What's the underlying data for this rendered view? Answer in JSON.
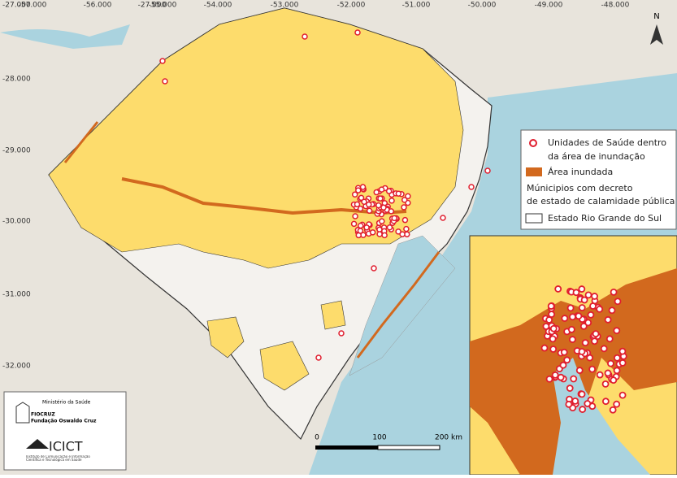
{
  "map": {
    "lon_labels": [
      "-57.000",
      "-56.000",
      "-27.000",
      "-55.000",
      "-54.000",
      "-53.000",
      "-52.000",
      "-51.000",
      "-50.000",
      "-49.000",
      "-48.000"
    ],
    "lat_labels": [
      "-27.000",
      "-28.000",
      "-29.000",
      "-30.000",
      "-31.000",
      "-32.000"
    ],
    "north": "N",
    "legend": {
      "health_units": [
        "Unidades de Saúde dentro",
        "da área de inundação"
      ],
      "flooded": "Área inundada",
      "municipalities": [
        "Múnicipios com decreto",
        "de estado de calamidade pública"
      ],
      "state": "Estado Rio Grande do Sul"
    },
    "scale": [
      "0",
      "100",
      "200 km"
    ],
    "logo": {
      "ministry": "Ministério da Saúde",
      "fiocruz": "FIOCRUZ",
      "foundation": "Fundação Oswaldo Cruz",
      "icict": "ICICT",
      "institute": "Instituto de Comunicação e Informação Científica e Tecnológica em Saúde"
    }
  }
}
